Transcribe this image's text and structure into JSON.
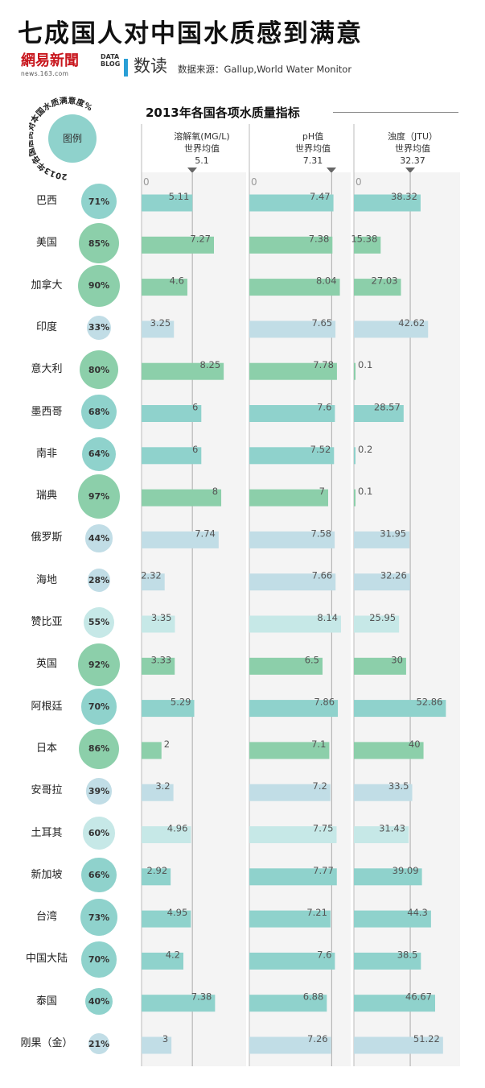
{
  "header": {
    "title": "七成国人对中国水质感到满意",
    "logo_163": "網易新聞",
    "logo_163_url": "news.163.com",
    "logo_datablog_line1": "DATA",
    "logo_datablog_line2": "BLOG",
    "logo_shudu": "数读",
    "source": "数据来源：Gallup,World Water Monitor"
  },
  "legend": {
    "ring_text": "2013年各国居民对本国水质满意度%",
    "center_label": "图例"
  },
  "section_title": "2013年各国各项水质量指标",
  "colors": {
    "green_dark": "#8ccfaa",
    "teal": "#8fd2cc",
    "light_teal": "#c6e8e7",
    "blue": "#c1dde6"
  },
  "chart_data": {
    "type": "bar",
    "metrics": [
      {
        "name": "溶解氧(MG/L)",
        "avg_label": "世界均值",
        "avg": 5.1,
        "axis_zero": "0",
        "max": 10.5
      },
      {
        "name": "pH值",
        "avg_label": "世界均值",
        "avg": 7.31,
        "axis_zero": "0",
        "max": 9.0
      },
      {
        "name": "浊度（JTU）",
        "avg_label": "世界均值",
        "avg": 32.37,
        "axis_zero": "0",
        "max": 61.0
      }
    ],
    "rows": [
      {
        "country": "巴西",
        "satisfaction": 71,
        "sat_label": "71%",
        "values": [
          5.11,
          7.47,
          38.32
        ],
        "labels": [
          "5.11",
          "7.47",
          "38.32"
        ],
        "color": "#8fd2cc"
      },
      {
        "country": "美国",
        "satisfaction": 85,
        "sat_label": "85%",
        "values": [
          7.27,
          7.38,
          15.38
        ],
        "labels": [
          "7.27",
          "7.38",
          "15.38"
        ],
        "color": "#8ccfaa"
      },
      {
        "country": "加拿大",
        "satisfaction": 90,
        "sat_label": "90%",
        "values": [
          4.6,
          8.04,
          27.03
        ],
        "labels": [
          "4.6",
          "8.04",
          "27.03"
        ],
        "color": "#8ccfaa"
      },
      {
        "country": "印度",
        "satisfaction": 33,
        "sat_label": "33%",
        "values": [
          3.25,
          7.65,
          42.62
        ],
        "labels": [
          "3.25",
          "7.65",
          "42.62"
        ],
        "color": "#c1dde6"
      },
      {
        "country": "意大利",
        "satisfaction": 80,
        "sat_label": "80%",
        "values": [
          8.25,
          7.78,
          0.1
        ],
        "labels": [
          "8.25",
          "7.78",
          "0.1"
        ],
        "color": "#8ccfaa"
      },
      {
        "country": "墨西哥",
        "satisfaction": 68,
        "sat_label": "68%",
        "values": [
          6,
          7.6,
          28.57
        ],
        "labels": [
          "6",
          "7.6",
          "28.57"
        ],
        "color": "#8fd2cc"
      },
      {
        "country": "南非",
        "satisfaction": 64,
        "sat_label": "64%",
        "values": [
          6,
          7.52,
          0.2
        ],
        "labels": [
          "6",
          "7.52",
          "0.2"
        ],
        "color": "#8fd2cc"
      },
      {
        "country": "瑞典",
        "satisfaction": 97,
        "sat_label": "97%",
        "values": [
          8,
          7,
          0.1
        ],
        "labels": [
          "8",
          "7",
          "0.1"
        ],
        "color": "#8ccfaa"
      },
      {
        "country": "俄罗斯",
        "satisfaction": 44,
        "sat_label": "44%",
        "values": [
          7.74,
          7.58,
          31.95
        ],
        "labels": [
          "7.74",
          "7.58",
          "31.95"
        ],
        "color": "#c1dde6"
      },
      {
        "country": "海地",
        "satisfaction": 28,
        "sat_label": "28%",
        "values": [
          2.32,
          7.66,
          32.26
        ],
        "labels": [
          "2.32",
          "7.66",
          "32.26"
        ],
        "color": "#c1dde6"
      },
      {
        "country": "赞比亚",
        "satisfaction": 55,
        "sat_label": "55%",
        "values": [
          3.35,
          8.14,
          25.95
        ],
        "labels": [
          "3.35",
          "8.14",
          "25.95"
        ],
        "color": "#c6e8e7"
      },
      {
        "country": "英国",
        "satisfaction": 92,
        "sat_label": "92%",
        "values": [
          3.33,
          6.5,
          30
        ],
        "labels": [
          "3.33",
          "6.5",
          "30"
        ],
        "color": "#8ccfaa"
      },
      {
        "country": "阿根廷",
        "satisfaction": 70,
        "sat_label": "70%",
        "values": [
          5.29,
          7.86,
          52.86
        ],
        "labels": [
          "5.29",
          "7.86",
          "52.86"
        ],
        "color": "#8fd2cc"
      },
      {
        "country": "日本",
        "satisfaction": 86,
        "sat_label": "86%",
        "values": [
          2,
          7.1,
          40
        ],
        "labels": [
          "2",
          "7.1",
          "40"
        ],
        "color": "#8ccfaa"
      },
      {
        "country": "安哥拉",
        "satisfaction": 39,
        "sat_label": "39%",
        "values": [
          3.2,
          7.2,
          33.5
        ],
        "labels": [
          "3.2",
          "7.2",
          "33.5"
        ],
        "color": "#c1dde6"
      },
      {
        "country": "土耳其",
        "satisfaction": 60,
        "sat_label": "60%",
        "values": [
          4.96,
          7.75,
          31.43
        ],
        "labels": [
          "4.96",
          "7.75",
          "31.43"
        ],
        "color": "#c6e8e7"
      },
      {
        "country": "新加坡",
        "satisfaction": 66,
        "sat_label": "66%",
        "values": [
          2.92,
          7.77,
          39.09
        ],
        "labels": [
          "2.92",
          "7.77",
          "39.09"
        ],
        "color": "#8fd2cc"
      },
      {
        "country": "台湾",
        "satisfaction": 73,
        "sat_label": "73%",
        "values": [
          4.95,
          7.21,
          44.3
        ],
        "labels": [
          "4.95",
          "7.21",
          "44.3"
        ],
        "color": "#8fd2cc"
      },
      {
        "country": "中国大陆",
        "satisfaction": 70,
        "sat_label": "70%",
        "values": [
          4.2,
          7.6,
          38.5
        ],
        "labels": [
          "4.2",
          "7.6",
          "38.5"
        ],
        "color": "#8fd2cc"
      },
      {
        "country": "泰国",
        "satisfaction": 40,
        "sat_label": "40%",
        "values": [
          7.38,
          6.88,
          46.67
        ],
        "labels": [
          "7.38",
          "6.88",
          "46.67"
        ],
        "color": "#8fd2cc"
      },
      {
        "country": "刚果（金）",
        "satisfaction": 21,
        "sat_label": "21%",
        "values": [
          3,
          7.26,
          51.22
        ],
        "labels": [
          "3",
          "7.26",
          "51.22"
        ],
        "color": "#c1dde6"
      }
    ]
  }
}
